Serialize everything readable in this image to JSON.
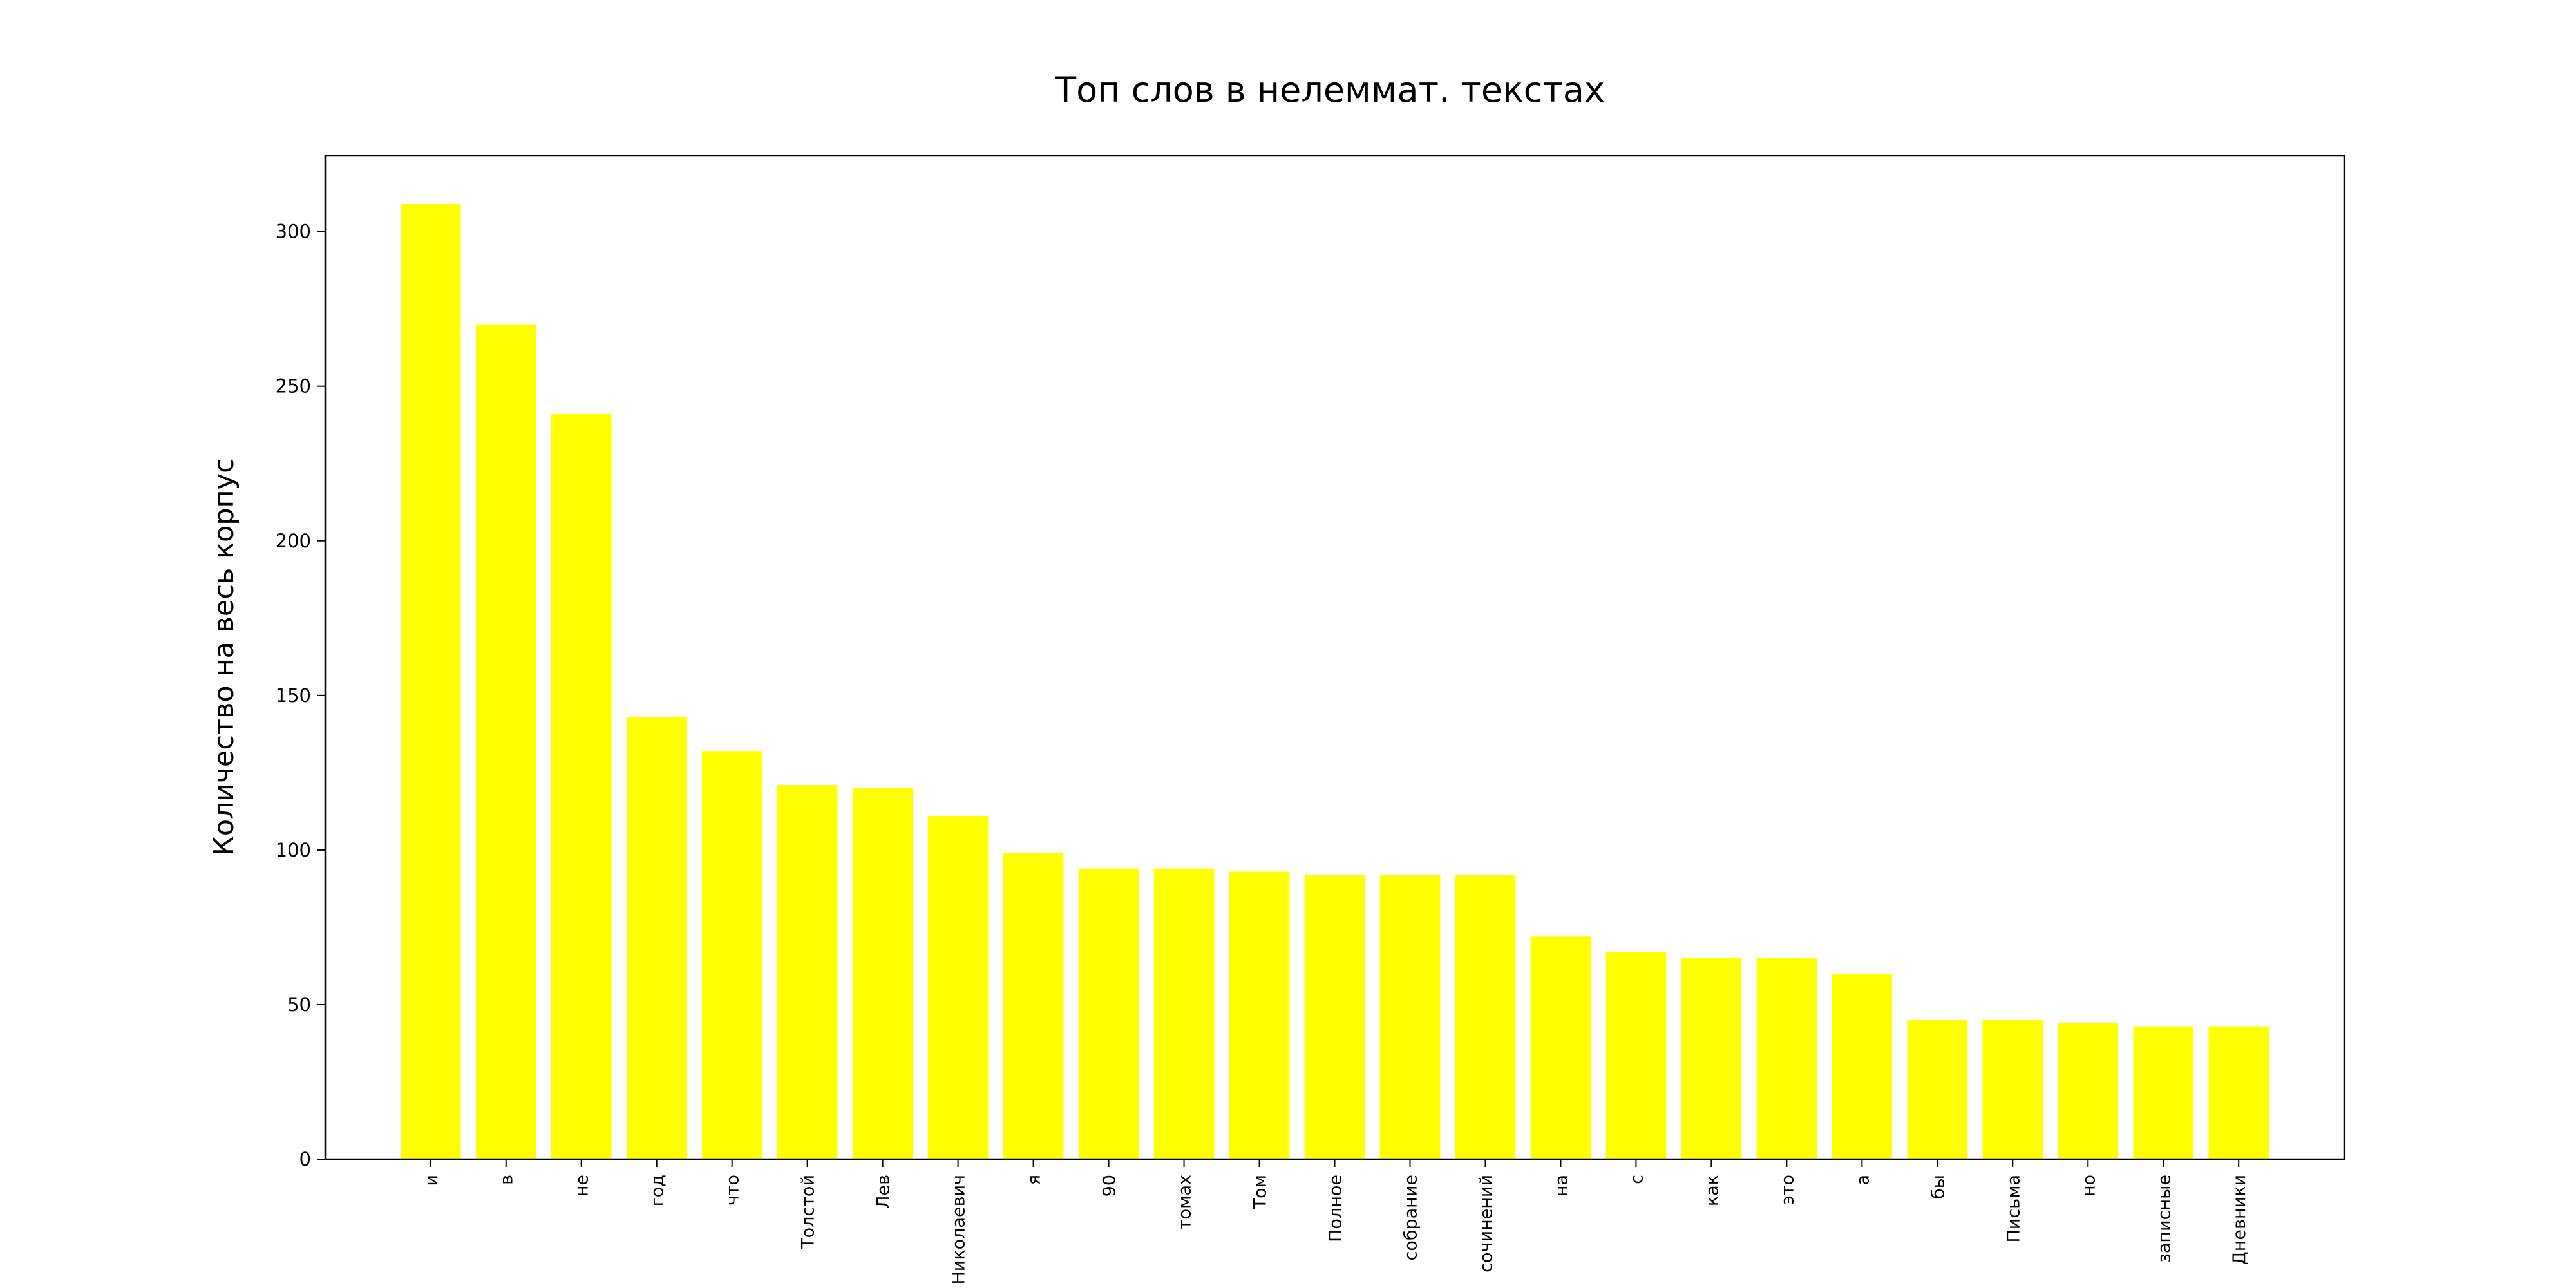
{
  "chart_data": {
    "type": "bar",
    "title": "Топ слов в нелеммат. текстах",
    "xlabel": "",
    "ylabel": "Количество на весь корпус",
    "categories": [
      "и",
      "в",
      "не",
      "год",
      "что",
      "Толстой",
      "Лев",
      "Николаевич",
      "я",
      "90",
      "томах",
      "Том",
      "Полное",
      "собрание",
      "сочинений",
      "на",
      "с",
      "как",
      "это",
      "а",
      "бы",
      "Письма",
      "но",
      "записные",
      "Дневники"
    ],
    "values": [
      309,
      270,
      241,
      143,
      132,
      121,
      120,
      111,
      99,
      94,
      94,
      93,
      92,
      92,
      92,
      72,
      67,
      65,
      65,
      60,
      45,
      45,
      44,
      43,
      43
    ],
    "ylim": [
      0,
      324.5
    ],
    "yticks": [
      0,
      50,
      100,
      150,
      200,
      250,
      300
    ],
    "bar_color": "#ffff00",
    "grid": false
  }
}
